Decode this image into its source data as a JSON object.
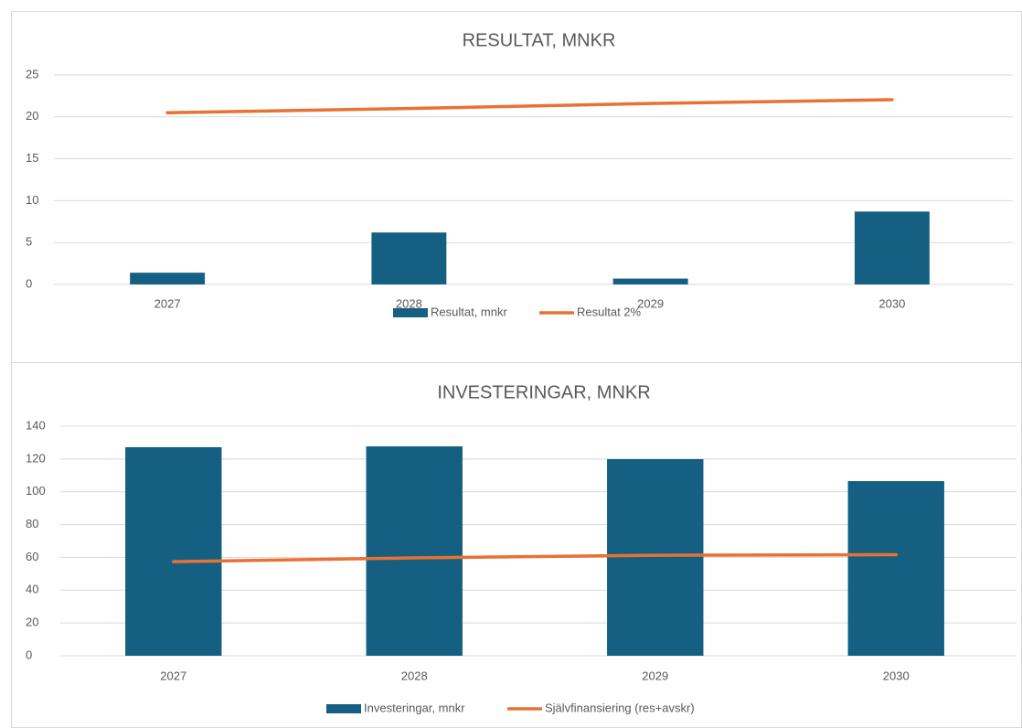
{
  "chart_data": [
    {
      "type": "combo",
      "title": "RESULTAT, MNKR",
      "categories": [
        "2027",
        "2028",
        "2029",
        "2030"
      ],
      "series": [
        {
          "name": "Resultat, mnkr",
          "type": "bar",
          "color": "#156082",
          "values": [
            1.4,
            6.2,
            0.7,
            8.7
          ]
        },
        {
          "name": "Resultat 2%",
          "type": "line",
          "color": "#e97132",
          "values": [
            20.5,
            21.0,
            21.6,
            22.05
          ]
        }
      ],
      "ylim": [
        0,
        25
      ],
      "yticks": [
        0,
        5,
        10,
        15,
        20,
        25
      ],
      "grid": true,
      "legend": "bottom"
    },
    {
      "type": "combo",
      "title": "INVESTERINGAR, MNKR",
      "categories": [
        "2027",
        "2028",
        "2029",
        "2030"
      ],
      "series": [
        {
          "name": "Investeringar, mnkr",
          "type": "bar",
          "color": "#156082",
          "values": [
            127.2,
            127.7,
            119.9,
            106.5
          ]
        },
        {
          "name": "Självfinansiering (res+avskr)",
          "type": "line",
          "color": "#e97132",
          "values": [
            57.4,
            59.7,
            61.3,
            61.6
          ]
        }
      ],
      "ylim": [
        0,
        140
      ],
      "yticks": [
        0,
        20,
        40,
        60,
        80,
        100,
        120,
        140
      ],
      "grid": true,
      "legend": "bottom"
    }
  ]
}
